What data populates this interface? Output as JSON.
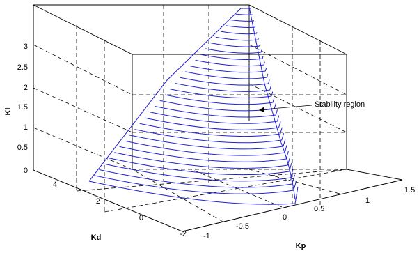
{
  "chart_data": {
    "type": "surface-3d",
    "axes": {
      "x": {
        "label": "Kp",
        "ticks": [
          "-1",
          "-0.5",
          "0",
          "0.5",
          "1",
          "1.5"
        ]
      },
      "y": {
        "label": "Kd",
        "ticks": [
          "-2",
          "0",
          "2",
          "4"
        ]
      },
      "z": {
        "label": "Ki",
        "ticks": [
          "0",
          "0.5",
          "1",
          "1.5",
          "2",
          "2.5",
          "3"
        ],
        "zlim": [
          0,
          3
        ]
      }
    },
    "grid": true,
    "line_color": "#1f1fd6",
    "annotation": "Stability region",
    "description_series": {
      "Ki_levels": [
        0,
        0.1,
        0.2,
        0.3,
        0.4,
        0.5,
        0.6,
        0.7,
        0.8,
        0.9,
        1.0,
        1.1,
        1.2,
        1.3,
        1.4,
        1.5,
        1.6,
        1.7,
        1.8,
        1.9,
        2.0,
        2.1,
        2.2,
        2.3,
        2.4,
        2.5,
        2.6,
        2.7,
        2.8,
        2.9,
        3.0
      ]
    }
  }
}
